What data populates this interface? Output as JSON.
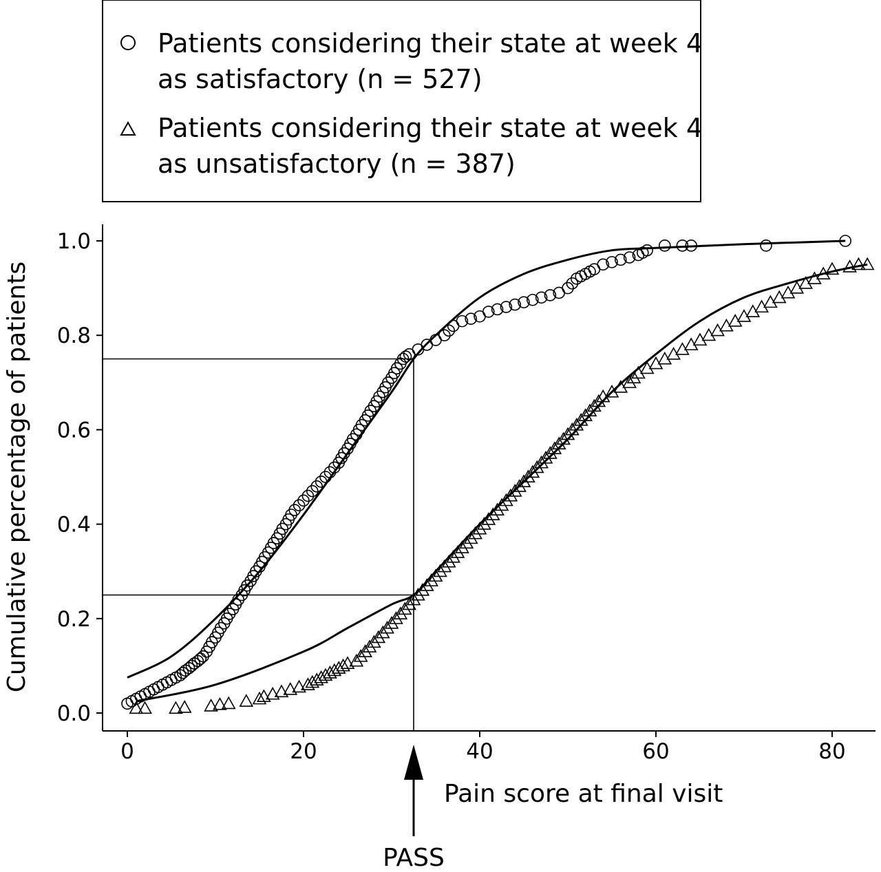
{
  "chart_data": {
    "type": "scatter",
    "xlabel": "Pain score at final visit",
    "ylabel": "Cumulative percentage of patients",
    "xlim": [
      -3,
      85
    ],
    "ylim": [
      -0.04,
      1.04
    ],
    "x_ticks": [
      "0",
      "20",
      "40",
      "60",
      "80"
    ],
    "x_tick_values": [
      0,
      20,
      40,
      60,
      80
    ],
    "y_ticks": [
      "0.0",
      "0.2",
      "0.4",
      "0.6",
      "0.8",
      "1.0"
    ],
    "y_tick_values": [
      0,
      0.2,
      0.4,
      0.6,
      0.8,
      1.0
    ],
    "legend": {
      "position": "top",
      "entries": [
        {
          "marker": "circle",
          "lines": [
            "Patients considering their state at week 4",
            "as satisfactory (n = 527)"
          ]
        },
        {
          "marker": "triangle",
          "lines": [
            "Patients considering their state at week 4",
            "as unsatisfactory (n = 387)"
          ]
        }
      ]
    },
    "annotation": {
      "label": "PASS",
      "x": 32.5,
      "y_lower": 0.25,
      "y_upper": 0.75
    },
    "series": [
      {
        "marker": "circle",
        "points": [
          [
            0,
            0.02
          ],
          [
            0.5,
            0.025
          ],
          [
            1,
            0.03
          ],
          [
            1.5,
            0.035
          ],
          [
            2,
            0.04
          ],
          [
            2.5,
            0.045
          ],
          [
            3,
            0.05
          ],
          [
            3.5,
            0.055
          ],
          [
            4,
            0.06
          ],
          [
            4.5,
            0.065
          ],
          [
            5,
            0.07
          ],
          [
            5.5,
            0.075
          ],
          [
            6,
            0.08
          ],
          [
            6.3,
            0.085
          ],
          [
            6.6,
            0.09
          ],
          [
            7,
            0.095
          ],
          [
            7.3,
            0.1
          ],
          [
            7.6,
            0.105
          ],
          [
            8,
            0.11
          ],
          [
            8.3,
            0.115
          ],
          [
            8.6,
            0.12
          ],
          [
            9,
            0.13
          ],
          [
            9.3,
            0.14
          ],
          [
            9.6,
            0.15
          ],
          [
            10,
            0.16
          ],
          [
            10.3,
            0.17
          ],
          [
            10.6,
            0.18
          ],
          [
            11,
            0.19
          ],
          [
            11.3,
            0.2
          ],
          [
            11.6,
            0.21
          ],
          [
            12,
            0.22
          ],
          [
            12.3,
            0.23
          ],
          [
            12.6,
            0.24
          ],
          [
            13,
            0.25
          ],
          [
            13.3,
            0.26
          ],
          [
            13.6,
            0.27
          ],
          [
            14,
            0.28
          ],
          [
            14.3,
            0.29
          ],
          [
            14.6,
            0.3
          ],
          [
            15,
            0.31
          ],
          [
            15.3,
            0.32
          ],
          [
            15.6,
            0.33
          ],
          [
            16,
            0.34
          ],
          [
            16.3,
            0.35
          ],
          [
            16.6,
            0.36
          ],
          [
            17,
            0.37
          ],
          [
            17.3,
            0.38
          ],
          [
            17.6,
            0.39
          ],
          [
            18,
            0.4
          ],
          [
            18.3,
            0.41
          ],
          [
            18.6,
            0.42
          ],
          [
            19,
            0.43
          ],
          [
            19.5,
            0.44
          ],
          [
            20,
            0.45
          ],
          [
            20.5,
            0.46
          ],
          [
            21,
            0.47
          ],
          [
            21.5,
            0.48
          ],
          [
            22,
            0.49
          ],
          [
            22.5,
            0.5
          ],
          [
            23,
            0.51
          ],
          [
            23.5,
            0.52
          ],
          [
            24,
            0.53
          ],
          [
            24.3,
            0.54
          ],
          [
            24.6,
            0.55
          ],
          [
            25,
            0.56
          ],
          [
            25.3,
            0.57
          ],
          [
            25.6,
            0.58
          ],
          [
            26,
            0.59
          ],
          [
            26.3,
            0.6
          ],
          [
            26.6,
            0.61
          ],
          [
            27,
            0.62
          ],
          [
            27.3,
            0.63
          ],
          [
            27.6,
            0.64
          ],
          [
            28,
            0.65
          ],
          [
            28.3,
            0.66
          ],
          [
            28.6,
            0.67
          ],
          [
            29,
            0.68
          ],
          [
            29.3,
            0.69
          ],
          [
            29.6,
            0.7
          ],
          [
            30,
            0.71
          ],
          [
            30.3,
            0.72
          ],
          [
            30.6,
            0.73
          ],
          [
            31,
            0.74
          ],
          [
            31.3,
            0.75
          ],
          [
            31.6,
            0.755
          ],
          [
            32,
            0.76
          ],
          [
            33,
            0.77
          ],
          [
            34,
            0.78
          ],
          [
            35,
            0.79
          ],
          [
            36,
            0.8
          ],
          [
            36.5,
            0.81
          ],
          [
            37,
            0.82
          ],
          [
            38,
            0.83
          ],
          [
            39,
            0.835
          ],
          [
            40,
            0.84
          ],
          [
            41,
            0.85
          ],
          [
            42,
            0.855
          ],
          [
            43,
            0.86
          ],
          [
            44,
            0.865
          ],
          [
            45,
            0.87
          ],
          [
            46,
            0.875
          ],
          [
            47,
            0.88
          ],
          [
            48,
            0.885
          ],
          [
            49,
            0.89
          ],
          [
            50,
            0.9
          ],
          [
            50.5,
            0.91
          ],
          [
            51,
            0.92
          ],
          [
            51.5,
            0.925
          ],
          [
            52,
            0.93
          ],
          [
            52.5,
            0.935
          ],
          [
            53,
            0.94
          ],
          [
            54,
            0.95
          ],
          [
            55,
            0.955
          ],
          [
            56,
            0.96
          ],
          [
            57,
            0.965
          ],
          [
            58,
            0.97
          ],
          [
            58.5,
            0.975
          ],
          [
            59,
            0.98
          ],
          [
            61,
            0.99
          ],
          [
            63,
            0.99
          ],
          [
            64,
            0.99
          ],
          [
            72.5,
            0.99
          ],
          [
            81.5,
            1.0
          ]
        ]
      },
      {
        "marker": "triangle",
        "points": [
          [
            1,
            0.01
          ],
          [
            2,
            0.01
          ],
          [
            5.5,
            0.01
          ],
          [
            6.5,
            0.012
          ],
          [
            9.5,
            0.015
          ],
          [
            10.5,
            0.018
          ],
          [
            11.5,
            0.02
          ],
          [
            13.5,
            0.025
          ],
          [
            15,
            0.03
          ],
          [
            15.5,
            0.035
          ],
          [
            16.5,
            0.04
          ],
          [
            17.5,
            0.045
          ],
          [
            18.5,
            0.05
          ],
          [
            19.5,
            0.055
          ],
          [
            20.5,
            0.06
          ],
          [
            21,
            0.065
          ],
          [
            21.5,
            0.07
          ],
          [
            22,
            0.075
          ],
          [
            22.5,
            0.08
          ],
          [
            23,
            0.085
          ],
          [
            23.5,
            0.09
          ],
          [
            24,
            0.095
          ],
          [
            24.5,
            0.1
          ],
          [
            25,
            0.105
          ],
          [
            26,
            0.11
          ],
          [
            26.5,
            0.12
          ],
          [
            27,
            0.13
          ],
          [
            27.5,
            0.14
          ],
          [
            28,
            0.15
          ],
          [
            28.5,
            0.16
          ],
          [
            29,
            0.17
          ],
          [
            29.5,
            0.18
          ],
          [
            30,
            0.19
          ],
          [
            30.5,
            0.2
          ],
          [
            31,
            0.21
          ],
          [
            31.5,
            0.22
          ],
          [
            32,
            0.23
          ],
          [
            32.5,
            0.24
          ],
          [
            33,
            0.25
          ],
          [
            33.5,
            0.26
          ],
          [
            34,
            0.27
          ],
          [
            34.5,
            0.28
          ],
          [
            35,
            0.29
          ],
          [
            35.5,
            0.3
          ],
          [
            36,
            0.31
          ],
          [
            36.5,
            0.32
          ],
          [
            37,
            0.33
          ],
          [
            37.5,
            0.34
          ],
          [
            38,
            0.35
          ],
          [
            38.5,
            0.36
          ],
          [
            39,
            0.37
          ],
          [
            39.5,
            0.38
          ],
          [
            40,
            0.39
          ],
          [
            40.5,
            0.4
          ],
          [
            41,
            0.41
          ],
          [
            41.5,
            0.42
          ],
          [
            42,
            0.43
          ],
          [
            42.5,
            0.44
          ],
          [
            43,
            0.45
          ],
          [
            43.5,
            0.46
          ],
          [
            44,
            0.47
          ],
          [
            44.5,
            0.48
          ],
          [
            45,
            0.49
          ],
          [
            45.5,
            0.5
          ],
          [
            46,
            0.51
          ],
          [
            46.5,
            0.52
          ],
          [
            47,
            0.53
          ],
          [
            47.5,
            0.54
          ],
          [
            48,
            0.55
          ],
          [
            48.5,
            0.56
          ],
          [
            49,
            0.57
          ],
          [
            49.5,
            0.58
          ],
          [
            50,
            0.59
          ],
          [
            50.5,
            0.6
          ],
          [
            51,
            0.61
          ],
          [
            51.5,
            0.62
          ],
          [
            52,
            0.63
          ],
          [
            52.5,
            0.64
          ],
          [
            53,
            0.65
          ],
          [
            53.5,
            0.66
          ],
          [
            54,
            0.67
          ],
          [
            55,
            0.68
          ],
          [
            56,
            0.69
          ],
          [
            57,
            0.7
          ],
          [
            57.5,
            0.71
          ],
          [
            58,
            0.72
          ],
          [
            59,
            0.73
          ],
          [
            60,
            0.74
          ],
          [
            61,
            0.75
          ],
          [
            62,
            0.76
          ],
          [
            63,
            0.77
          ],
          [
            64,
            0.78
          ],
          [
            65,
            0.79
          ],
          [
            66,
            0.8
          ],
          [
            67,
            0.81
          ],
          [
            68,
            0.82
          ],
          [
            69,
            0.83
          ],
          [
            70,
            0.84
          ],
          [
            71,
            0.85
          ],
          [
            72,
            0.86
          ],
          [
            73,
            0.87
          ],
          [
            74,
            0.88
          ],
          [
            75,
            0.89
          ],
          [
            76,
            0.9
          ],
          [
            77,
            0.91
          ],
          [
            78,
            0.92
          ],
          [
            79,
            0.93
          ],
          [
            80,
            0.94
          ],
          [
            82,
            0.945
          ],
          [
            83,
            0.95
          ],
          [
            84,
            0.95
          ]
        ]
      }
    ],
    "fitted_curves": [
      {
        "for": "circle",
        "points": [
          [
            0,
            0.075
          ],
          [
            5,
            0.12
          ],
          [
            10,
            0.2
          ],
          [
            15,
            0.3
          ],
          [
            20,
            0.42
          ],
          [
            25,
            0.55
          ],
          [
            30,
            0.68
          ],
          [
            32.5,
            0.75
          ],
          [
            35,
            0.8
          ],
          [
            40,
            0.88
          ],
          [
            45,
            0.93
          ],
          [
            50,
            0.96
          ],
          [
            55,
            0.98
          ],
          [
            60,
            0.985
          ],
          [
            70,
            0.993
          ],
          [
            81.5,
            1.0
          ]
        ]
      },
      {
        "for": "triangle",
        "points": [
          [
            1,
            0.025
          ],
          [
            10,
            0.06
          ],
          [
            20,
            0.13
          ],
          [
            25,
            0.18
          ],
          [
            30,
            0.23
          ],
          [
            32.5,
            0.25
          ],
          [
            35,
            0.3
          ],
          [
            40,
            0.4
          ],
          [
            45,
            0.49
          ],
          [
            50,
            0.58
          ],
          [
            55,
            0.68
          ],
          [
            60,
            0.76
          ],
          [
            65,
            0.83
          ],
          [
            70,
            0.88
          ],
          [
            75,
            0.91
          ],
          [
            80,
            0.935
          ],
          [
            84,
            0.95
          ]
        ]
      }
    ]
  }
}
